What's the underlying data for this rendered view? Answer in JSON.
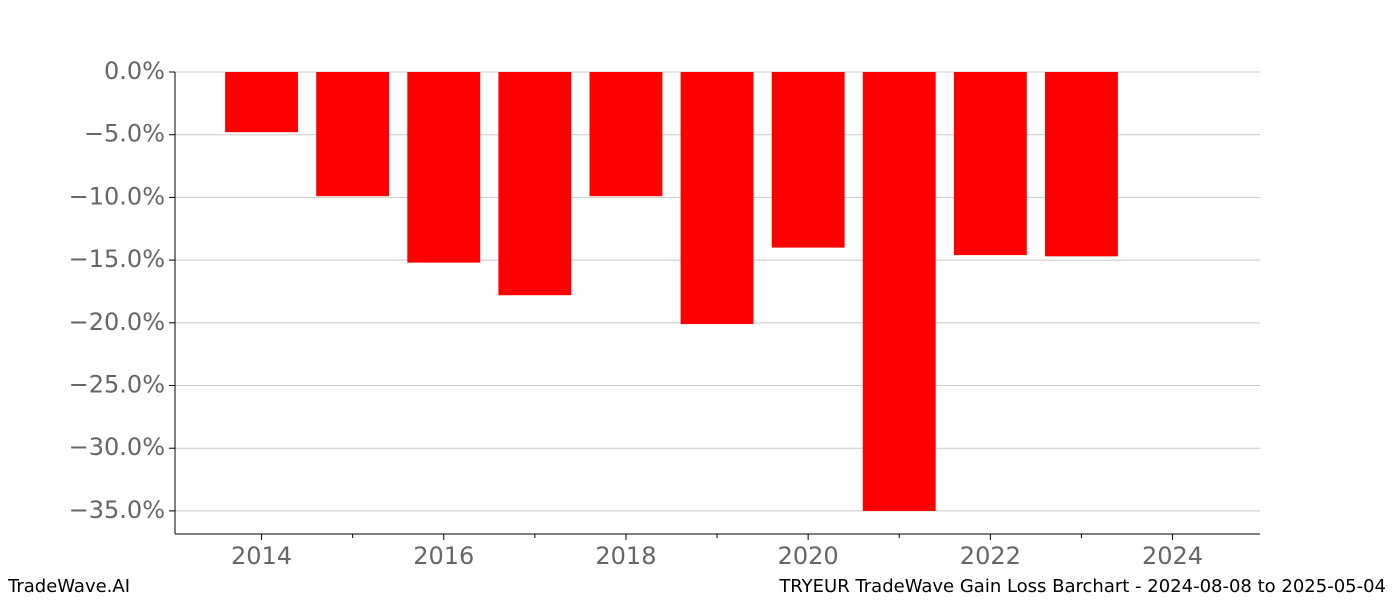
{
  "chart_data": {
    "type": "bar",
    "x": [
      2014,
      2015,
      2016,
      2017,
      2018,
      2019,
      2020,
      2021,
      2022,
      2023
    ],
    "values": [
      -4.8,
      -9.9,
      -15.2,
      -17.8,
      -9.9,
      -20.1,
      -14.0,
      -35.0,
      -14.6,
      -14.7
    ],
    "color": "#ff0000",
    "xlim": [
      2013.05,
      2024.96
    ],
    "xticks": [
      2014,
      2016,
      2018,
      2020,
      2022,
      2024
    ],
    "xminor_ticks": [
      2015,
      2017,
      2019,
      2021,
      2023
    ],
    "ylim": [
      -36.84,
      0
    ],
    "yticks": [
      {
        "value": 0,
        "label": "0.0%"
      },
      {
        "value": -5,
        "label": "−5.0%"
      },
      {
        "value": -10,
        "label": "−10.0%"
      },
      {
        "value": -15,
        "label": "−15.0%"
      },
      {
        "value": -20,
        "label": "−20.0%"
      },
      {
        "value": -25,
        "label": "−25.0%"
      },
      {
        "value": -30,
        "label": "−30.0%"
      },
      {
        "value": -35,
        "label": "−35.0%"
      }
    ],
    "grid": true,
    "footer_left": "TradeWave.AI",
    "footer_right": "TRYEUR TradeWave Gain Loss Barchart - 2024-08-08 to 2025-05-04"
  }
}
